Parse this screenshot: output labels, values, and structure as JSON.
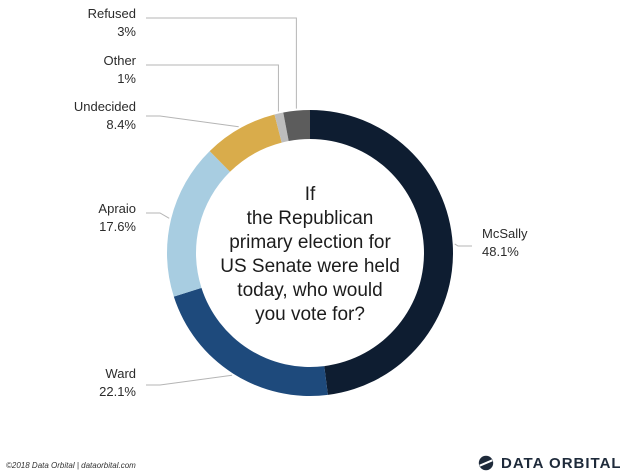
{
  "chart_data": {
    "type": "pie",
    "variant": "donut",
    "title_lines": [
      "If",
      "the Republican",
      "primary election for",
      "US Senate were held",
      "today, who would",
      "you vote for?"
    ],
    "slices": [
      {
        "name": "McSally",
        "value": 48.1,
        "label": "48.1%",
        "color": "#0e1d31"
      },
      {
        "name": "Ward",
        "value": 22.1,
        "label": "22.1%",
        "color": "#1e4a7c"
      },
      {
        "name": "Apraio",
        "value": 17.6,
        "label": "17.6%",
        "color": "#a8cde1"
      },
      {
        "name": "Undecided",
        "value": 8.4,
        "label": "8.4%",
        "color": "#d9ac4b"
      },
      {
        "name": "Other",
        "value": 1,
        "label": "1%",
        "color": "#bdbdbd"
      },
      {
        "name": "Refused",
        "value": 3,
        "label": "3%",
        "color": "#5c5c5c"
      }
    ],
    "leader_color": "#b5b5b5"
  },
  "footer": {
    "credit": "©2018 Data Orbital | dataorbital.com",
    "brand_name": "DATA ORBITAL",
    "brand_logo_icon": "orbit-logo-icon",
    "brand_color": "#1e2a3a"
  }
}
